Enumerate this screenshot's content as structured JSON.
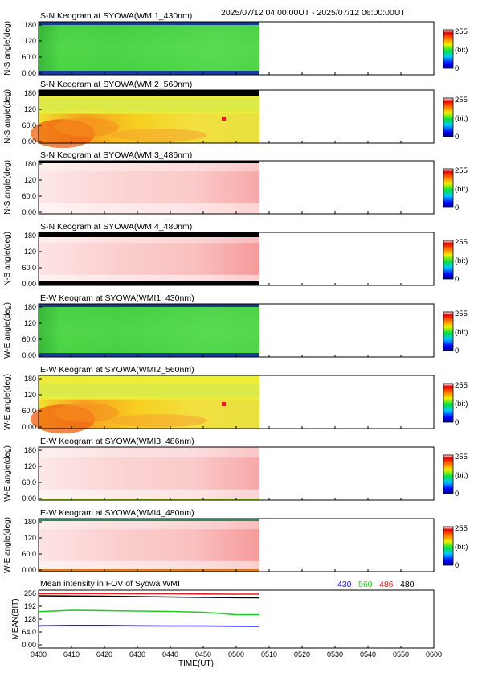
{
  "header": {
    "time_range": "2025/07/12 04:00:00UT - 2025/07/12 06:00:00UT"
  },
  "colorbar": {
    "max_label": "255",
    "unit_label": "(bit)",
    "min_label": "0"
  },
  "keograms": [
    {
      "title": "S-N Keogram at SYOWA(WMI1_430nm)",
      "ylabel": "N-S angle(deg)",
      "style": "green430"
    },
    {
      "title": "S-N Keogram at SYOWA(WMI2_560nm)",
      "ylabel": "N-S angle(deg)",
      "style": "warm560"
    },
    {
      "title": "S-N Keogram at SYOWA(WMI3_486nm)",
      "ylabel": "N-S angle(deg)",
      "style": "pink486"
    },
    {
      "title": "S-N Keogram at SYOWA(WMI4_480nm)",
      "ylabel": "N-S angle(deg)",
      "style": "pink480"
    },
    {
      "title": "E-W Keogram at SYOWA(WMI1_430nm)",
      "ylabel": "W-E angle(deg)",
      "style": "green430"
    },
    {
      "title": "E-W Keogram at SYOWA(WMI2_560nm)",
      "ylabel": "W-E angle(deg)",
      "style": "warm560"
    },
    {
      "title": "E-W Keogram at SYOWA(WMI3_486nm)",
      "ylabel": "W-E angle(deg)",
      "style": "pink486"
    },
    {
      "title": "E-W Keogram at SYOWA(WMI4_480nm)",
      "ylabel": "W-E angle(deg)",
      "style": "pink480"
    }
  ],
  "keogram_yticks": [
    "0.00",
    "60.0",
    "120",
    "180"
  ],
  "mean_panel": {
    "title": "Mean intensity in FOV of Syowa WMI",
    "ylabel": "MEAN(BIT)",
    "yticks": [
      "0.00",
      "64.0",
      "128",
      "192",
      "256"
    ],
    "legend": [
      {
        "label": "430",
        "color": "#1a1adb"
      },
      {
        "label": "560",
        "color": "#22cc22"
      },
      {
        "label": "486",
        "color": "#e02020"
      },
      {
        "label": "480",
        "color": "#000000"
      }
    ]
  },
  "x_axis": {
    "label": "TIME(UT)",
    "ticks": [
      "0400",
      "0410",
      "0420",
      "0430",
      "0440",
      "0450",
      "0500",
      "0510",
      "0520",
      "0530",
      "0540",
      "0550",
      "0600"
    ]
  },
  "chart_data": {
    "type": "line",
    "title": "Mean intensity in FOV of Syowa WMI",
    "xlabel": "TIME(UT)",
    "ylabel": "MEAN(BIT)",
    "x_range_minutes_ut": [
      240,
      360
    ],
    "data_end_minutes_ut": 307,
    "ylim": [
      0,
      256
    ],
    "x": [
      240,
      250,
      260,
      270,
      280,
      290,
      300,
      307
    ],
    "series": [
      {
        "name": "430",
        "color": "#1a1adb",
        "values": [
          95,
          97,
          97,
          95,
          94,
          94,
          93,
          92
        ]
      },
      {
        "name": "560",
        "color": "#22cc22",
        "values": [
          165,
          172,
          170,
          168,
          166,
          162,
          150,
          150
        ]
      },
      {
        "name": "486",
        "color": "#e02020",
        "values": [
          254,
          255,
          255,
          254,
          254,
          253,
          252,
          252
        ]
      },
      {
        "name": "480",
        "color": "#000000",
        "values": [
          244,
          243,
          242,
          240,
          238,
          236,
          235,
          234
        ]
      }
    ]
  }
}
